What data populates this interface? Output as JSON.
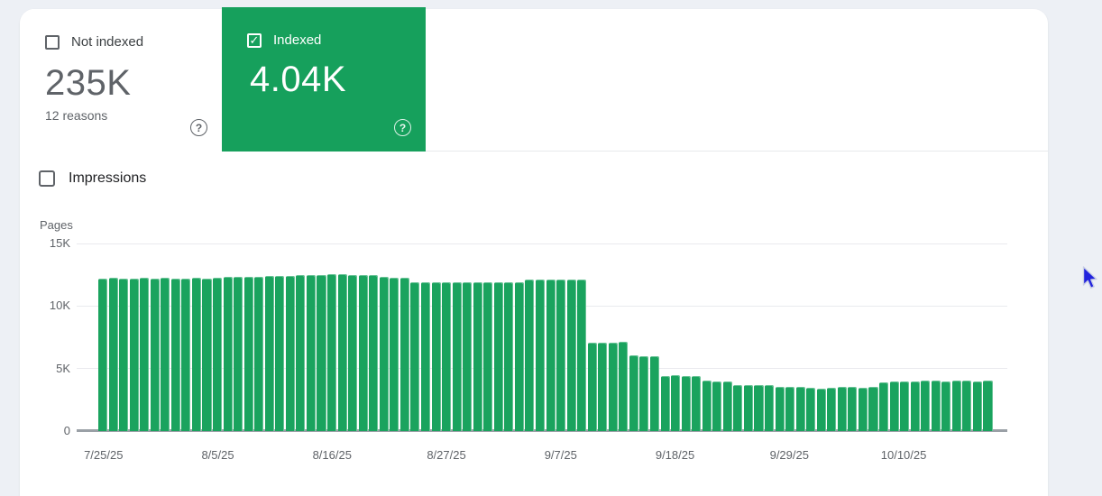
{
  "summary": {
    "not_indexed": {
      "label": "Not indexed",
      "value": "235K",
      "subtext": "12 reasons",
      "checked": false
    },
    "indexed": {
      "label": "Indexed",
      "value": "4.04K",
      "checked": true
    }
  },
  "impressions_toggle": {
    "label": "Impressions",
    "checked": false
  },
  "icons": {
    "help": "?",
    "check": "✓"
  },
  "colors": {
    "green_card": "#16a05c",
    "bar_green": "#1aa35e",
    "text_gray": "#5f6368",
    "label_dark": "#3c4043",
    "gridline": "#e9eaee",
    "axis_line": "#9aa0a6",
    "page_background": "#edf0f5"
  },
  "chart_data": {
    "type": "bar",
    "ylabel": "Pages",
    "ylim": [
      0,
      15000
    ],
    "grid": true,
    "y_ticks": [
      {
        "label": "15K",
        "value": 15000
      },
      {
        "label": "10K",
        "value": 10000
      },
      {
        "label": "5K",
        "value": 5000
      },
      {
        "label": "0",
        "value": 0
      }
    ],
    "x_ticks": [
      {
        "label": "7/25/25",
        "day_index": 0
      },
      {
        "label": "8/5/25",
        "day_index": 11
      },
      {
        "label": "8/16/25",
        "day_index": 22
      },
      {
        "label": "8/27/25",
        "day_index": 33
      },
      {
        "label": "9/7/25",
        "day_index": 44
      },
      {
        "label": "9/18/25",
        "day_index": 55
      },
      {
        "label": "9/29/25",
        "day_index": 66
      },
      {
        "label": "10/10/25",
        "day_index": 77
      }
    ],
    "dates": [
      "7/25/25",
      "7/26/25",
      "7/27/25",
      "7/28/25",
      "7/29/25",
      "7/30/25",
      "7/31/25",
      "8/1/25",
      "8/2/25",
      "8/3/25",
      "8/4/25",
      "8/5/25",
      "8/6/25",
      "8/7/25",
      "8/8/25",
      "8/9/25",
      "8/10/25",
      "8/11/25",
      "8/12/25",
      "8/13/25",
      "8/14/25",
      "8/15/25",
      "8/16/25",
      "8/17/25",
      "8/18/25",
      "8/19/25",
      "8/20/25",
      "8/21/25",
      "8/22/25",
      "8/23/25",
      "8/24/25",
      "8/25/25",
      "8/26/25",
      "8/27/25",
      "8/28/25",
      "8/29/25",
      "8/30/25",
      "8/31/25",
      "9/1/25",
      "9/2/25",
      "9/3/25",
      "9/4/25",
      "9/5/25",
      "9/6/25",
      "9/7/25",
      "9/8/25",
      "9/9/25",
      "9/10/25",
      "9/11/25",
      "9/12/25",
      "9/13/25",
      "9/14/25",
      "9/15/25",
      "9/16/25",
      "9/17/25",
      "9/18/25",
      "9/19/25",
      "9/20/25",
      "9/21/25",
      "9/22/25",
      "9/23/25",
      "9/24/25",
      "9/25/25",
      "9/26/25",
      "9/27/25",
      "9/28/25",
      "9/29/25",
      "9/30/25",
      "10/1/25",
      "10/2/25",
      "10/3/25",
      "10/4/25",
      "10/5/25",
      "10/6/25",
      "10/7/25",
      "10/8/25",
      "10/9/25",
      "10/10/25",
      "10/11/25",
      "10/12/25",
      "10/13/25",
      "10/14/25",
      "10/15/25",
      "10/16/25",
      "10/17/25",
      "10/18/25"
    ],
    "values": [
      12200,
      12250,
      12200,
      12200,
      12250,
      12200,
      12250,
      12200,
      12200,
      12250,
      12200,
      12250,
      12300,
      12300,
      12300,
      12350,
      12400,
      12400,
      12400,
      12450,
      12500,
      12500,
      12550,
      12550,
      12500,
      12500,
      12500,
      12300,
      12250,
      12250,
      11900,
      11900,
      11900,
      11900,
      11900,
      11900,
      11900,
      11900,
      11900,
      11900,
      11900,
      12150,
      12150,
      12150,
      12150,
      12150,
      12100,
      7100,
      7100,
      7100,
      7150,
      6050,
      6000,
      6000,
      4400,
      4450,
      4400,
      4400,
      4050,
      4000,
      4000,
      3700,
      3650,
      3700,
      3650,
      3550,
      3500,
      3500,
      3450,
      3400,
      3450,
      3550,
      3500,
      3450,
      3500,
      3900,
      3950,
      3950,
      3950,
      4050,
      4050,
      4000,
      4050,
      4050,
      4000,
      4040
    ]
  }
}
